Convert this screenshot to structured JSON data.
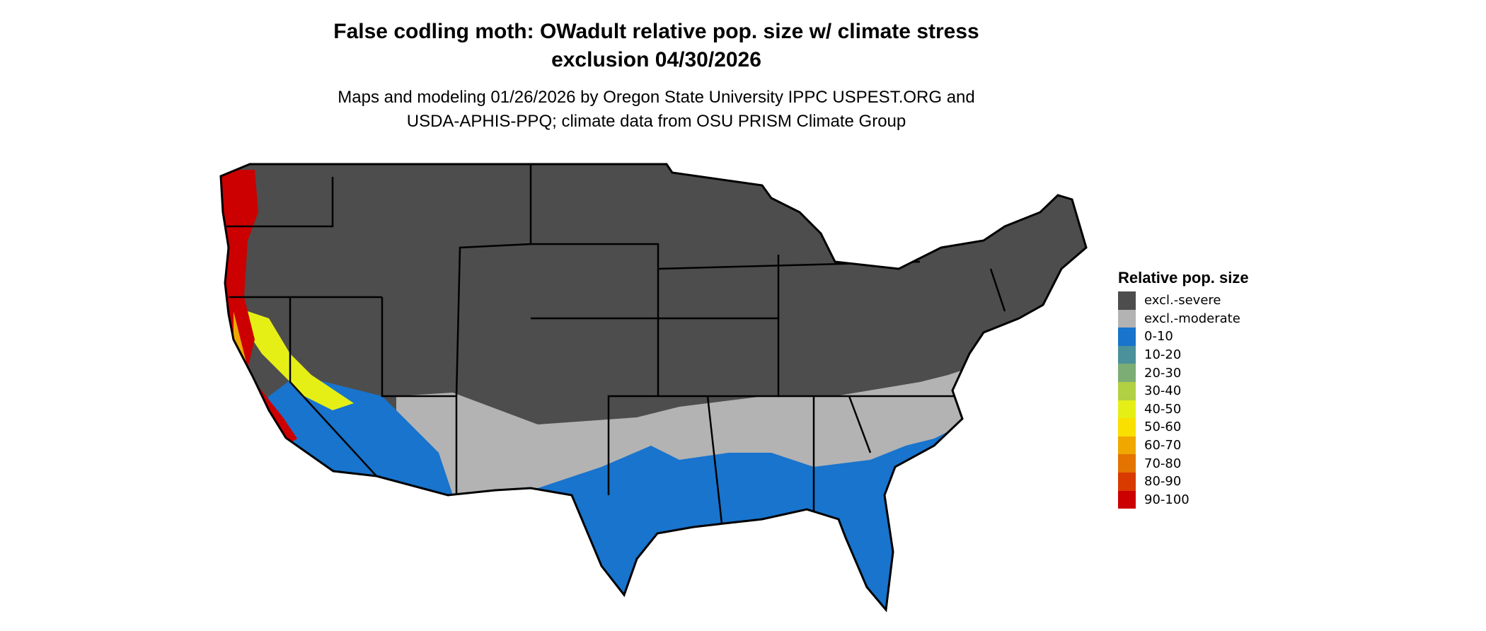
{
  "title_line1": "False codling moth: OWadult relative pop. size w/ climate stress",
  "title_line2": "exclusion 04/30/2026",
  "subtitle_line1": "Maps and modeling 01/26/2026 by Oregon State University IPPC USPEST.ORG and",
  "subtitle_line2": "USDA-APHIS-PPQ; climate data from OSU PRISM Climate Group",
  "legend": {
    "title": "Relative pop. size",
    "items": [
      {
        "label": "excl.-severe",
        "color": "#4d4d4d"
      },
      {
        "label": "excl.-moderate",
        "color": "#b3b3b3"
      },
      {
        "label": "0-10",
        "color": "#1874cd"
      },
      {
        "label": "10-20",
        "color": "#4a919b"
      },
      {
        "label": "20-30",
        "color": "#7bad74"
      },
      {
        "label": "30-40",
        "color": "#b2d044"
      },
      {
        "label": "40-50",
        "color": "#e5ef16"
      },
      {
        "label": "50-60",
        "color": "#f9e000"
      },
      {
        "label": "60-70",
        "color": "#f0a800"
      },
      {
        "label": "70-80",
        "color": "#e37400"
      },
      {
        "label": "80-90",
        "color": "#d83a00"
      },
      {
        "label": "90-100",
        "color": "#cc0000"
      }
    ]
  }
}
